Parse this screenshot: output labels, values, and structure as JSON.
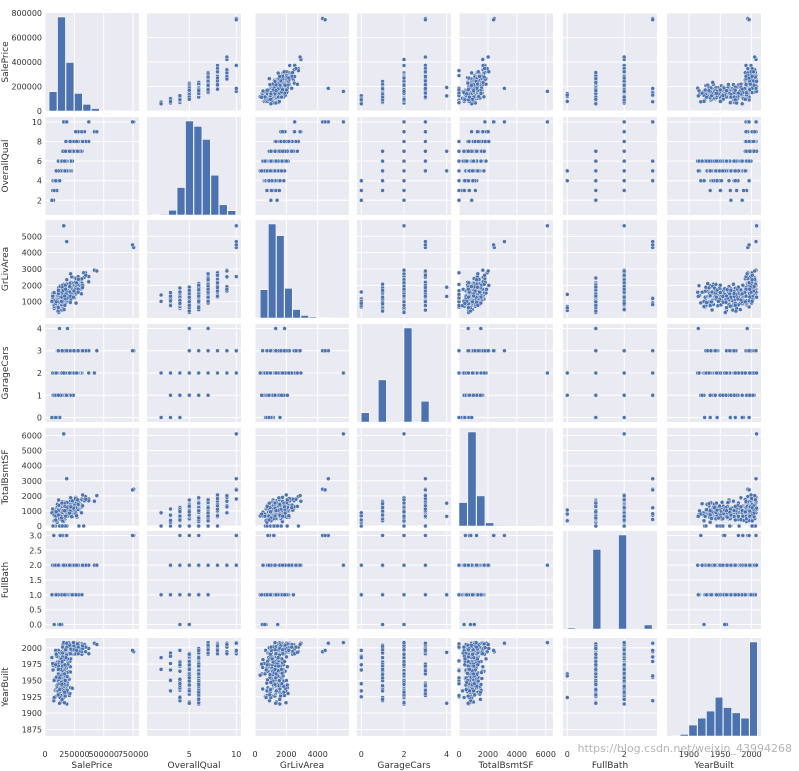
{
  "chart_data": {
    "type": "pairplot",
    "variables": [
      "SalePrice",
      "OverallQual",
      "GrLivArea",
      "GarageCars",
      "TotalBsmtSF",
      "FullBath",
      "YearBuilt"
    ],
    "series_color": "#4c72b0",
    "diagonal": "histogram",
    "off_diagonal": "scatter",
    "grid": true,
    "axes": [
      {
        "name": "SalePrice",
        "range": [
          0,
          800000
        ],
        "ticks": [
          0,
          250000,
          500000,
          750000
        ],
        "x_tick_labels": [
          "0",
          "250000",
          "500000",
          "750000"
        ],
        "y_ticks": [
          0,
          200000,
          400000,
          600000,
          800000
        ],
        "y_tick_labels": [
          "0",
          "200000",
          "400000",
          "600000",
          "800000"
        ]
      },
      {
        "name": "OverallQual",
        "range": [
          0.5,
          10.5
        ],
        "ticks": [
          5,
          10
        ],
        "x_tick_labels": [
          "5",
          "10"
        ],
        "y_ticks": [
          2,
          4,
          6,
          8,
          10
        ],
        "y_tick_labels": [
          "2",
          "4",
          "6",
          "8",
          "10"
        ]
      },
      {
        "name": "GrLivArea",
        "range": [
          0,
          6000
        ],
        "ticks": [
          0,
          2000,
          4000
        ],
        "x_tick_labels": [
          "0",
          "2000",
          "4000"
        ],
        "y_ticks": [
          1000,
          2000,
          3000,
          4000,
          5000
        ],
        "y_tick_labels": [
          "1000",
          "2000",
          "3000",
          "4000",
          "5000"
        ]
      },
      {
        "name": "GarageCars",
        "range": [
          -0.2,
          4.2
        ],
        "ticks": [
          0,
          2,
          4
        ],
        "x_tick_labels": [
          "0",
          "2",
          "4"
        ],
        "y_ticks": [
          0,
          1,
          2,
          3,
          4
        ],
        "y_tick_labels": [
          "0",
          "1",
          "2",
          "3",
          "4"
        ]
      },
      {
        "name": "TotalBsmtSF",
        "range": [
          0,
          6500
        ],
        "ticks": [
          0,
          2000,
          4000,
          6000
        ],
        "x_tick_labels": [
          "0",
          "2000",
          "4000",
          "6000"
        ],
        "y_ticks": [
          0,
          1000,
          2000,
          3000,
          4000,
          5000,
          6000
        ],
        "y_tick_labels": [
          "0",
          "1000",
          "2000",
          "3000",
          "4000",
          "5000",
          "6000"
        ]
      },
      {
        "name": "FullBath",
        "range": [
          -0.15,
          3.15
        ],
        "ticks": [
          0,
          2
        ],
        "x_tick_labels": [
          "0",
          "2"
        ],
        "y_ticks": [
          0,
          0.5,
          1,
          1.5,
          2,
          2.5,
          3
        ],
        "y_tick_labels": [
          "0.0",
          "0.5",
          "1.0",
          "1.5",
          "2.0",
          "2.5",
          "3.0"
        ]
      },
      {
        "name": "YearBuilt",
        "range": [
          1865,
          2015
        ],
        "ticks": [
          1900,
          1950,
          2000
        ],
        "x_tick_labels": [
          "1900",
          "1950",
          "2000"
        ],
        "y_ticks": [
          1875,
          1900,
          1925,
          1950,
          1975,
          2000
        ],
        "y_tick_labels": [
          "1875",
          "1900",
          "1925",
          "1950",
          "1975",
          "2000"
        ]
      }
    ],
    "diagonal_histograms": [
      {
        "variable": "SalePrice",
        "bin_edges": [
          34900,
          106920,
          178940,
          250960,
          322980,
          395000,
          467020,
          539040,
          611060,
          683080,
          755000
        ],
        "counts": [
          148,
          723,
          373,
          135,
          51,
          19,
          4,
          3,
          2,
          2
        ]
      },
      {
        "variable": "OverallQual",
        "bin_edges": [
          1,
          1.9,
          2.8,
          3.7,
          4.6,
          5.5,
          6.4,
          7.3,
          8.2,
          9.1,
          10
        ],
        "counts": [
          2,
          3,
          20,
          116,
          397,
          374,
          319,
          168,
          43,
          18
        ]
      },
      {
        "variable": "GrLivArea",
        "bin_edges": [
          334,
          854,
          1374,
          1894,
          2414,
          2934,
          3454,
          3974,
          4494,
          5014,
          5642
        ],
        "counts": [
          167,
          555,
          486,
          175,
          50,
          15,
          6,
          3,
          2,
          1
        ]
      },
      {
        "variable": "GarageCars",
        "bin_edges": [
          0,
          0.4,
          0.8,
          1.2,
          1.6,
          2.0,
          2.4,
          2.8,
          3.2,
          3.6,
          4
        ],
        "counts": [
          81,
          0,
          369,
          0,
          0,
          824,
          0,
          181,
          0,
          5
        ]
      },
      {
        "variable": "TotalBsmtSF",
        "bin_edges": [
          0,
          611,
          1222,
          1833,
          2444,
          3055,
          3666,
          4277,
          4888,
          5499,
          6110
        ],
        "counts": [
          226,
          907,
          290,
          30,
          6,
          0,
          0,
          0,
          0,
          1
        ]
      },
      {
        "variable": "FullBath",
        "bin_edges": [
          0,
          0.3,
          0.6,
          0.9,
          1.2,
          1.5,
          1.8,
          2.1,
          2.4,
          2.7,
          3
        ],
        "counts": [
          9,
          0,
          0,
          650,
          0,
          0,
          768,
          0,
          0,
          33
        ]
      },
      {
        "variable": "YearBuilt",
        "bin_edges": [
          1872,
          1886,
          1900,
          1914,
          1928,
          1942,
          1955,
          1969,
          1983,
          1997,
          2010
        ],
        "counts": [
          3,
          9,
          62,
          101,
          141,
          219,
          161,
          131,
          101,
          532
        ]
      }
    ],
    "watermark": "https://blog.csdn.net/weixin_43994268"
  }
}
